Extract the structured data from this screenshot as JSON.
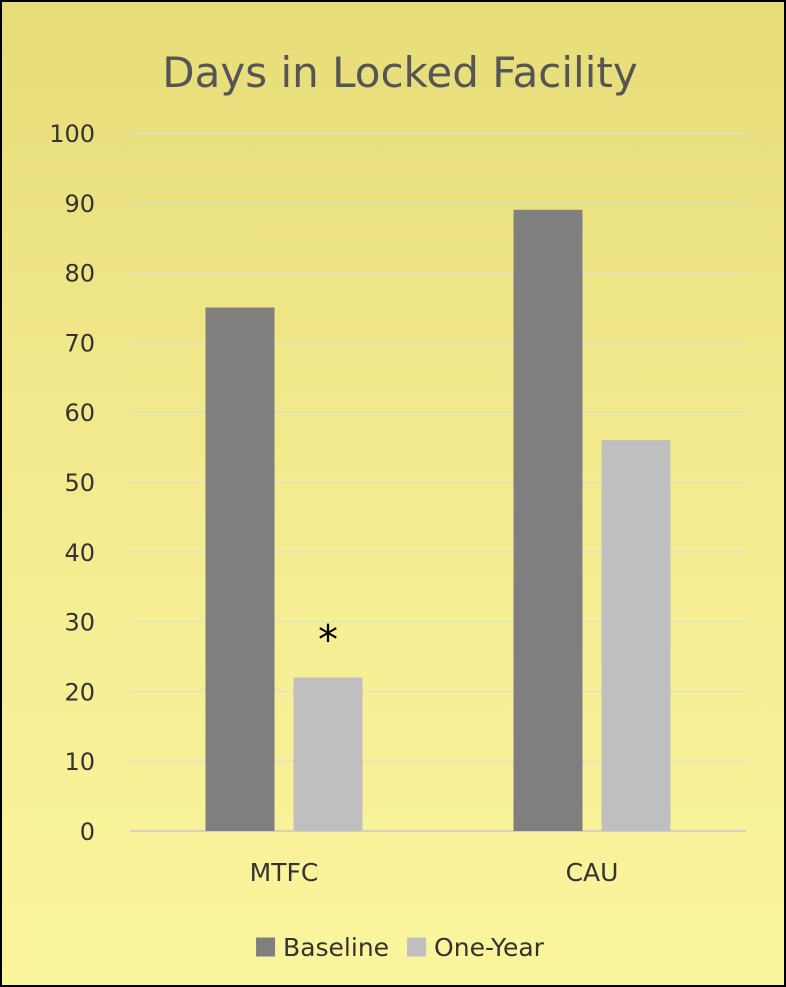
{
  "chart_data": {
    "type": "bar",
    "title": "Days in Locked Facility",
    "xlabel": "",
    "ylabel": "",
    "categories": [
      "MTFC",
      "CAU"
    ],
    "series": [
      {
        "name": "Baseline",
        "values": [
          75,
          89
        ],
        "color": "#7f7f7f"
      },
      {
        "name": "One-Year",
        "values": [
          22,
          56
        ],
        "color": "#bfbfbf"
      }
    ],
    "ylim": [
      0,
      100
    ],
    "yticks": [
      0,
      10,
      20,
      30,
      40,
      50,
      60,
      70,
      80,
      90,
      100
    ],
    "grid": true,
    "legend_position": "bottom",
    "annotations": [
      {
        "text": "*",
        "category": "MTFC",
        "series": "One-Year"
      }
    ]
  }
}
